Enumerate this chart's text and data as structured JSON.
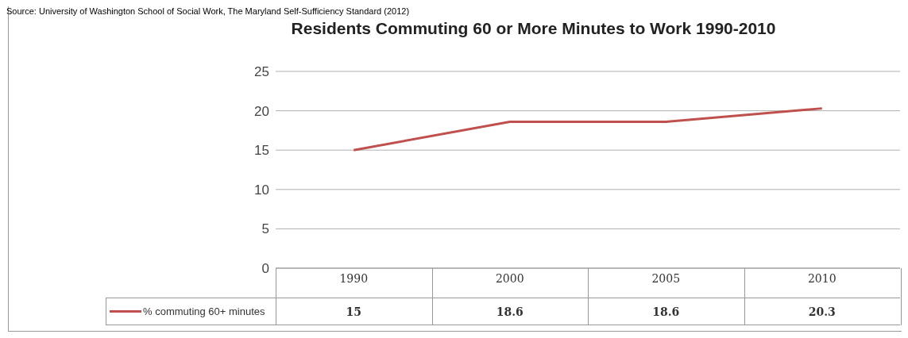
{
  "chart_data": {
    "type": "line",
    "title": "Residents Commuting 60 or More Minutes to Work 1990-2010",
    "annotations": [
      "Source: University of Washington School of Social Work, The Maryland Self-Sufficiency Standard (2012)"
    ],
    "categories": [
      "1990",
      "2000",
      "2005",
      "2010"
    ],
    "series": [
      {
        "name": "% commuting 60+ minutes",
        "color": "#c0504d",
        "values": [
          15,
          18.6,
          18.6,
          20.3
        ]
      }
    ],
    "ylim": [
      0,
      25
    ],
    "yticks": [
      0,
      5,
      10,
      15,
      20,
      25
    ],
    "grid": "y",
    "legend": "bottom",
    "data_labels": true,
    "marker": "none"
  }
}
